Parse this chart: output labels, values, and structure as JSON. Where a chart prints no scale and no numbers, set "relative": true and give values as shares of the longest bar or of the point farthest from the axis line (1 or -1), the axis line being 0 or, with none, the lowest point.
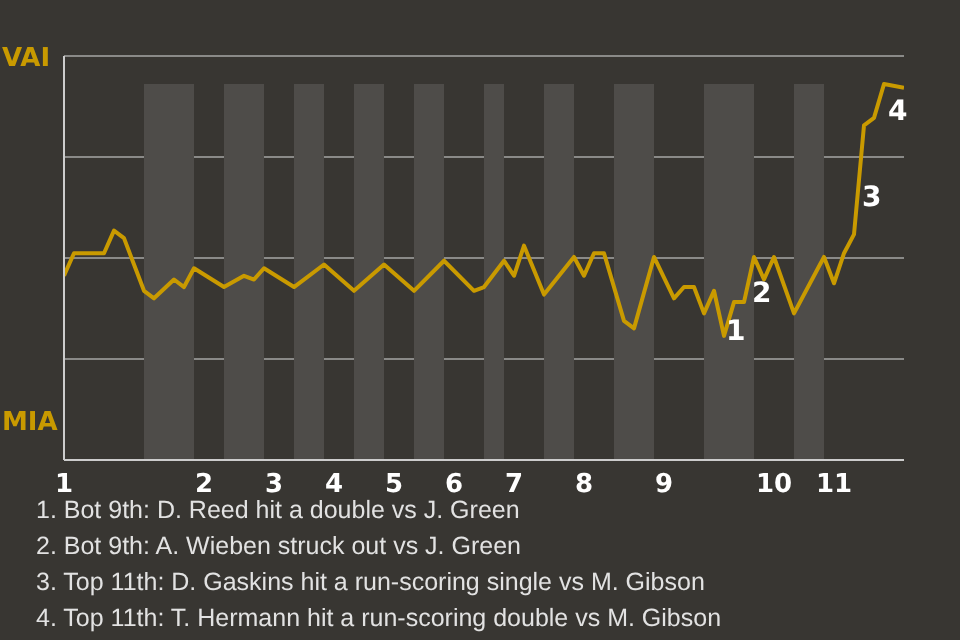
{
  "chart_data": {
    "type": "line",
    "relative": true,
    "categories": [
      "1",
      null,
      null,
      null,
      null,
      null,
      null,
      null,
      null,
      null,
      null,
      null,
      null,
      null,
      "2",
      null,
      null,
      null,
      null,
      null,
      null,
      "3",
      null,
      null,
      null,
      null,
      null,
      "4",
      null,
      null,
      null,
      null,
      null,
      "5",
      null,
      null,
      null,
      null,
      null,
      "6",
      null,
      null,
      null,
      null,
      null,
      "7",
      null,
      null,
      null,
      null,
      null,
      null,
      "8",
      null,
      null,
      null,
      null,
      null,
      null,
      null,
      "9",
      null,
      null,
      null,
      null,
      null,
      null,
      null,
      null,
      null,
      null,
      "10",
      null,
      null,
      null,
      null,
      null,
      "11",
      null,
      null,
      null,
      null,
      null,
      null,
      null
    ],
    "grid": "y",
    "marker": "none",
    "line_style": "solid",
    "series": [
      {
        "color": "#c99a00",
        "values": [
          0.49,
          0.55,
          null,
          null,
          0.55,
          0.61,
          0.59,
          0.52,
          0.45,
          0.43,
          null,
          0.48,
          0.46,
          0.51,
          null,
          null,
          0.46,
          null,
          0.49,
          0.48,
          0.51,
          null,
          null,
          0.46,
          null,
          null,
          0.52,
          null,
          null,
          0.45,
          null,
          null,
          0.52,
          null,
          null,
          0.45,
          null,
          null,
          0.53,
          null,
          null,
          0.45,
          0.46,
          null,
          0.53,
          0.49,
          0.57,
          null,
          0.44,
          null,
          null,
          0.54,
          0.49,
          0.55,
          0.55,
          null,
          0.37,
          0.35,
          null,
          0.54,
          null,
          0.43,
          0.46,
          0.46,
          0.39,
          0.45,
          0.33,
          0.42,
          0.42,
          0.54,
          0.48,
          0.54,
          null,
          0.39,
          null,
          0.49,
          0.54,
          0.47,
          0.55,
          0.6,
          0.89,
          0.91,
          1,
          null,
          0.99
        ]
      }
    ],
    "annotations": [
      "VAI",
      "MIA",
      "1",
      "2",
      "3",
      "4",
      "1. Bot 9th: D. Reed hit a double vs J. Green",
      "2. Bot 9th: A. Wieben struck out vs J. Green",
      "3. Top 11th: D. Gaskins hit a run-scoring single vs M. Gibson",
      "4. Top 11th: T. Hermann hit a run-scoring double vs M. Gibson"
    ]
  }
}
